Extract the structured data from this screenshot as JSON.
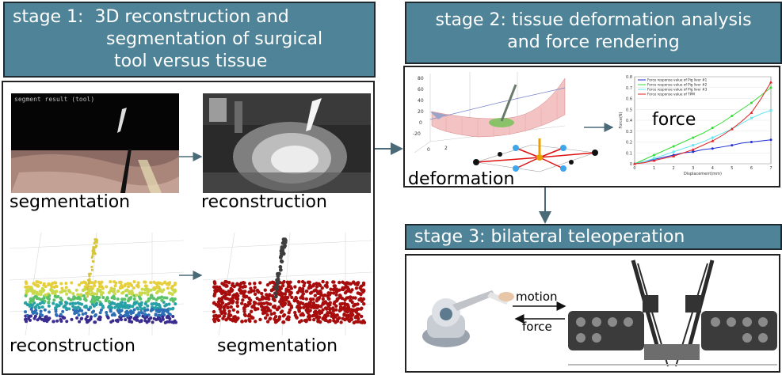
{
  "stage1": {
    "title_lines": [
      "stage 1:  3D reconstruction and",
      "segmentation of surgical",
      "tool versus tissue"
    ]
  },
  "stage2": {
    "title_lines": [
      "stage 2:  tissue deformation analysis",
      "and force rendering"
    ]
  },
  "stage3": {
    "title": "stage 3:  bilateral teleoperation"
  },
  "panel1": {
    "screen_caption": "segment result (tool)",
    "labels": {
      "top_left": "segmentation",
      "top_right": "reconstruction",
      "bottom_left": "reconstruction",
      "bottom_right": "segmentation"
    }
  },
  "panel2": {
    "deformation_label": "deformation",
    "force_label": "force"
  },
  "panel3": {
    "motion_label": "motion",
    "force_label": "force"
  },
  "colors": {
    "header_bg": "#4f8397",
    "arrow": "#4a6a78",
    "seg_red": "#a80d0d",
    "tool_gray": "#3e3e3e"
  },
  "chart_data": {
    "type": "line",
    "xlabel": "Displacement(mm)",
    "ylabel": "Force(N)",
    "xlim": [
      0,
      7
    ],
    "ylim": [
      0,
      0.8
    ],
    "x": [
      0,
      0.5,
      1,
      1.5,
      2,
      2.5,
      3,
      3.5,
      4,
      4.5,
      5,
      5.5,
      6,
      6.5,
      7
    ],
    "xticks": [
      "0",
      "1",
      "2",
      "3",
      "4",
      "5",
      "6",
      "7"
    ],
    "yticks": [
      "0",
      "0.1",
      "0.2",
      "0.3",
      "0.4",
      "0.5",
      "0.6",
      "0.7",
      "0.8"
    ],
    "series": [
      {
        "name": "Force response value of Pig liver #1",
        "color": "#1f2fd1",
        "values": [
          0,
          0.02,
          0.04,
          0.06,
          0.08,
          0.1,
          0.11,
          0.13,
          0.14,
          0.155,
          0.17,
          0.19,
          0.2,
          0.21,
          0.22
        ]
      },
      {
        "name": "Force response value of Pig liver #2",
        "color": "#33dd33",
        "values": [
          0,
          0.04,
          0.08,
          0.12,
          0.16,
          0.2,
          0.24,
          0.28,
          0.33,
          0.38,
          0.44,
          0.5,
          0.56,
          0.63,
          0.7
        ]
      },
      {
        "name": "Force response value of Pig liver #3",
        "color": "#66e6ee",
        "values": [
          0,
          0.02,
          0.05,
          0.08,
          0.11,
          0.14,
          0.17,
          0.2,
          0.24,
          0.28,
          0.32,
          0.37,
          0.42,
          0.46,
          0.49
        ]
      },
      {
        "name": "Force response value of TPM",
        "color": "#e21f1f",
        "values": [
          0,
          0.01,
          0.03,
          0.05,
          0.07,
          0.1,
          0.13,
          0.17,
          0.21,
          0.26,
          0.32,
          0.39,
          0.47,
          0.6,
          0.75
        ]
      }
    ]
  }
}
